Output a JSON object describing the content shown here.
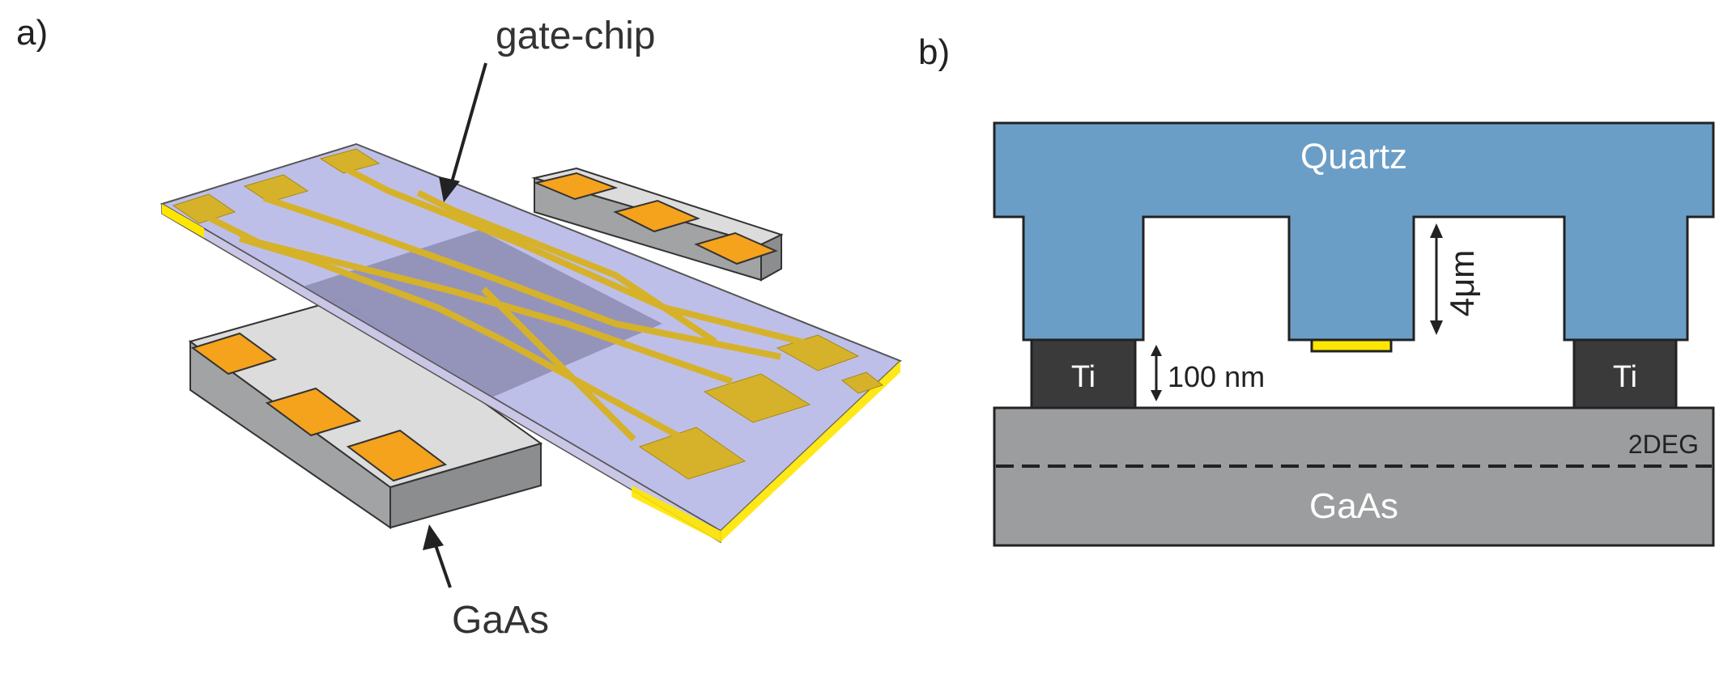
{
  "panel_a": {
    "label": "a)",
    "gate_chip_label": "gate-chip",
    "substrate_label": "GaAs"
  },
  "panel_b": {
    "label": "b)",
    "quartz_label": "Quartz",
    "ti_left_label": "Ti",
    "ti_right_label": "Ti",
    "gap_label": "100 nm",
    "depth_label": "4μm",
    "twodeg_label": "2DEG",
    "gaas_label": "GaAs"
  },
  "colors": {
    "quartz": "#6b9ec6",
    "ti": "#3a3a3a",
    "gaas": "#9c9d9f",
    "gold": "#d6b22b",
    "pad_orange": "#f5a21c",
    "chip_glass": "#b3b4e4",
    "chip_overlap": "#9696bc",
    "gate_yellow": "#ffe600"
  }
}
